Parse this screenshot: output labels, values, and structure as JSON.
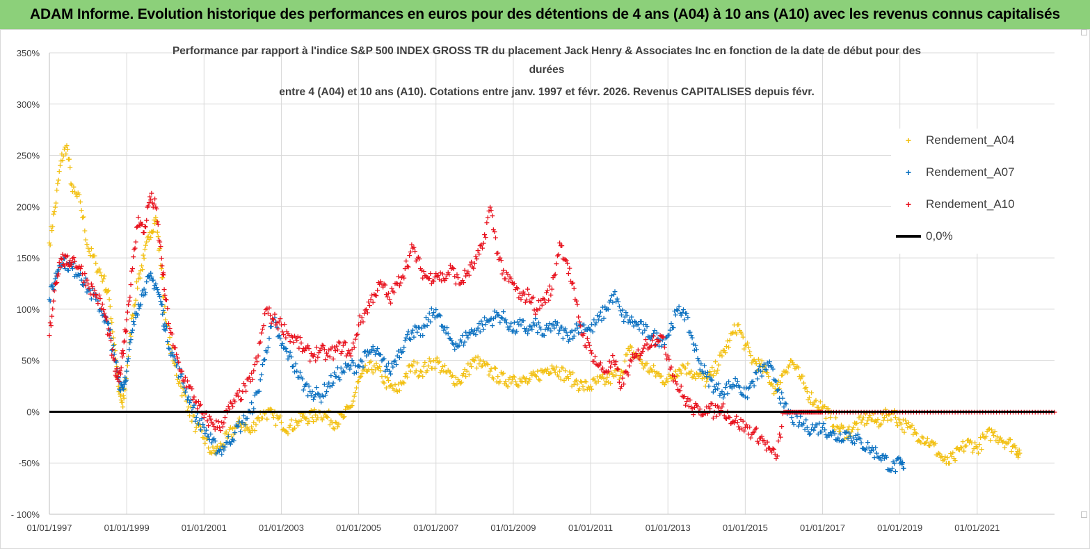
{
  "banner": {
    "title": "ADAM Informe. Evolution historique des performances en euros pour des détentions de 4 ans (A04) à 10 ans (A10) avec les revenus connus capitalisés"
  },
  "colors": {
    "banner_bg": "#8cd07a",
    "a04": "#f2c012",
    "a07": "#0a70c0",
    "a10": "#e8101c",
    "zero": "#000000",
    "grid": "#d9d9d9"
  },
  "chart_data": {
    "type": "scatter",
    "title_lines": [
      "Performance par rapport à l'indice S&P 500 INDEX GROSS TR  du placement Jack Henry & Associates Inc en fonction de la date de début pour des",
      "durées",
      "entre 4 (A04) et 10 ans (A10). Cotations entre janv. 1997 et févr. 2026. Revenus CAPITALISES depuis févr."
    ],
    "xlabel": "",
    "ylabel": "",
    "x_range": [
      1997.0,
      2023.0
    ],
    "ylim": [
      -100,
      350
    ],
    "y_ticks": [
      -100,
      -50,
      0,
      50,
      100,
      150,
      200,
      250,
      300,
      350
    ],
    "y_tick_labels": [
      "- 100%",
      "-50%",
      "0%",
      "50%",
      "100%",
      "150%",
      "200%",
      "250%",
      "300%",
      "350%"
    ],
    "x_ticks": [
      1997,
      1999,
      2001,
      2003,
      2005,
      2007,
      2009,
      2011,
      2013,
      2015,
      2017,
      2019,
      2021
    ],
    "x_tick_labels": [
      "01/01/1997",
      "01/01/1999",
      "01/01/2001",
      "01/01/2003",
      "01/01/2005",
      "01/01/2007",
      "01/01/2009",
      "01/01/2011",
      "01/01/2013",
      "01/01/2015",
      "01/01/2017",
      "01/01/2019",
      "01/01/2021"
    ],
    "legend_position": "top-right",
    "series": [
      {
        "name": "Rendement_A04",
        "marker": "+",
        "x": [
          1997.0,
          1997.15,
          1997.3,
          1997.45,
          1997.6,
          1997.8,
          1998.0,
          1998.2,
          1998.4,
          1998.55,
          1998.7,
          1998.8,
          1998.9,
          1999.0,
          1999.15,
          1999.3,
          1999.45,
          1999.6,
          1999.75,
          1999.9,
          2000.0,
          2000.2,
          2000.4,
          2000.6,
          2000.8,
          2001.0,
          2001.2,
          2001.4,
          2001.6,
          2001.8,
          2002.0,
          2002.2,
          2002.4,
          2002.6,
          2002.8,
          2003.0,
          2003.2,
          2003.4,
          2003.6,
          2003.8,
          2004.0,
          2004.2,
          2004.4,
          2004.6,
          2004.8,
          2005.0,
          2005.2,
          2005.4,
          2005.6,
          2005.8,
          2006.0,
          2006.2,
          2006.4,
          2006.6,
          2006.8,
          2007.0,
          2007.2,
          2007.4,
          2007.6,
          2007.8,
          2008.0,
          2008.2,
          2008.4,
          2008.6,
          2008.8,
          2009.0,
          2009.2,
          2009.4,
          2009.6,
          2009.8,
          2010.0,
          2010.2,
          2010.4,
          2010.6,
          2010.8,
          2011.0,
          2011.2,
          2011.4,
          2011.6,
          2011.8,
          2012.0,
          2012.2,
          2012.4,
          2012.6,
          2012.8,
          2013.0,
          2013.2,
          2013.4,
          2013.6,
          2013.8,
          2014.0,
          2014.2,
          2014.4,
          2014.6,
          2014.8,
          2015.0,
          2015.2,
          2015.4,
          2015.6,
          2015.8,
          2016.0,
          2016.2,
          2016.4,
          2016.6,
          2016.8,
          2017.0,
          2017.2,
          2017.4,
          2017.6,
          2017.8,
          2018.0,
          2018.2,
          2018.4,
          2018.6,
          2018.8,
          2019.0,
          2019.2,
          2019.4,
          2019.6,
          2019.8,
          2020.0,
          2020.2,
          2020.4,
          2020.6,
          2020.8,
          2021.0,
          2021.2,
          2021.4,
          2021.6,
          2021.8,
          2022.0,
          2022.1
        ],
        "values": [
          165,
          200,
          245,
          260,
          215,
          205,
          160,
          145,
          130,
          110,
          60,
          20,
          5,
          40,
          95,
          130,
          150,
          175,
          190,
          140,
          90,
          50,
          25,
          5,
          -15,
          -25,
          -40,
          -35,
          -25,
          -15,
          -10,
          -20,
          -5,
          0,
          -5,
          -10,
          -15,
          -10,
          -5,
          -5,
          0,
          -5,
          -10,
          -5,
          5,
          30,
          40,
          45,
          35,
          25,
          20,
          35,
          45,
          40,
          45,
          50,
          40,
          35,
          30,
          40,
          50,
          45,
          40,
          35,
          30,
          35,
          30,
          30,
          35,
          40,
          45,
          40,
          35,
          30,
          25,
          25,
          30,
          30,
          35,
          40,
          60,
          55,
          45,
          40,
          35,
          30,
          40,
          45,
          40,
          35,
          30,
          40,
          55,
          70,
          85,
          65,
          50,
          45,
          35,
          20,
          40,
          50,
          35,
          20,
          10,
          5,
          -5,
          -15,
          -20,
          -15,
          -10,
          -5,
          -10,
          -5,
          0,
          -10,
          -15,
          -20,
          -25,
          -30,
          -40,
          -50,
          -45,
          -35,
          -30,
          -35,
          -25,
          -20,
          -25,
          -30,
          -35,
          -40
        ]
      },
      {
        "name": "Rendement_A07",
        "marker": "+",
        "x": [
          1997.0,
          1997.15,
          1997.3,
          1997.45,
          1997.6,
          1997.8,
          1998.0,
          1998.2,
          1998.4,
          1998.55,
          1998.7,
          1998.8,
          1998.9,
          1999.0,
          1999.15,
          1999.3,
          1999.45,
          1999.6,
          1999.75,
          1999.9,
          2000.0,
          2000.2,
          2000.4,
          2000.6,
          2000.8,
          2001.0,
          2001.2,
          2001.4,
          2001.6,
          2001.8,
          2002.0,
          2002.2,
          2002.4,
          2002.6,
          2002.8,
          2003.0,
          2003.2,
          2003.4,
          2003.6,
          2003.8,
          2004.0,
          2004.2,
          2004.4,
          2004.6,
          2004.8,
          2005.0,
          2005.2,
          2005.4,
          2005.6,
          2005.8,
          2006.0,
          2006.2,
          2006.4,
          2006.6,
          2006.8,
          2007.0,
          2007.2,
          2007.4,
          2007.6,
          2007.8,
          2008.0,
          2008.2,
          2008.4,
          2008.6,
          2008.8,
          2009.0,
          2009.2,
          2009.4,
          2009.6,
          2009.8,
          2010.0,
          2010.2,
          2010.4,
          2010.6,
          2010.8,
          2011.0,
          2011.2,
          2011.4,
          2011.6,
          2011.8,
          2012.0,
          2012.2,
          2012.4,
          2012.6,
          2012.8,
          2013.0,
          2013.2,
          2013.4,
          2013.6,
          2013.8,
          2014.0,
          2014.2,
          2014.4,
          2014.6,
          2014.8,
          2015.0,
          2015.2,
          2015.4,
          2015.6,
          2015.8,
          2016.0,
          2016.2,
          2016.4,
          2016.6,
          2016.8,
          2017.0,
          2017.2,
          2017.4,
          2017.6,
          2017.8,
          2018.0,
          2018.2,
          2018.4,
          2018.6,
          2018.8,
          2019.0,
          2019.1
        ],
        "values": [
          110,
          130,
          150,
          145,
          140,
          135,
          120,
          110,
          95,
          80,
          50,
          30,
          25,
          40,
          80,
          105,
          120,
          130,
          125,
          105,
          80,
          55,
          35,
          15,
          -5,
          -15,
          -30,
          -38,
          -30,
          -20,
          -10,
          0,
          20,
          60,
          90,
          65,
          55,
          40,
          25,
          20,
          15,
          25,
          35,
          40,
          45,
          45,
          55,
          60,
          50,
          40,
          55,
          70,
          80,
          75,
          90,
          100,
          80,
          70,
          65,
          75,
          80,
          85,
          90,
          95,
          90,
          80,
          85,
          80,
          85,
          75,
          85,
          80,
          75,
          80,
          85,
          80,
          90,
          100,
          115,
          95,
          90,
          85,
          80,
          75,
          70,
          75,
          95,
          100,
          75,
          50,
          35,
          25,
          20,
          25,
          30,
          15,
          30,
          40,
          45,
          30,
          5,
          -5,
          -10,
          -15,
          -15,
          -15,
          -20,
          -25,
          -20,
          -25,
          -30,
          -35,
          -40,
          -45,
          -55,
          -50,
          -55
        ]
      },
      {
        "name": "Rendement_A10",
        "marker": "+",
        "x": [
          1997.0,
          1997.15,
          1997.3,
          1997.45,
          1997.6,
          1997.8,
          1998.0,
          1998.2,
          1998.4,
          1998.55,
          1998.7,
          1998.8,
          1998.9,
          1999.0,
          1999.15,
          1999.3,
          1999.45,
          1999.6,
          1999.75,
          1999.9,
          2000.0,
          2000.2,
          2000.4,
          2000.6,
          2000.8,
          2001.0,
          2001.2,
          2001.4,
          2001.6,
          2001.8,
          2002.0,
          2002.2,
          2002.4,
          2002.6,
          2002.8,
          2003.0,
          2003.2,
          2003.4,
          2003.6,
          2003.8,
          2004.0,
          2004.2,
          2004.4,
          2004.6,
          2004.8,
          2005.0,
          2005.2,
          2005.4,
          2005.6,
          2005.8,
          2006.0,
          2006.2,
          2006.4,
          2006.6,
          2006.8,
          2007.0,
          2007.2,
          2007.4,
          2007.6,
          2007.8,
          2008.0,
          2008.2,
          2008.4,
          2008.6,
          2008.8,
          2009.0,
          2009.2,
          2009.4,
          2009.6,
          2009.8,
          2010.0,
          2010.2,
          2010.4,
          2010.6,
          2010.8,
          2011.0,
          2011.2,
          2011.4,
          2011.6,
          2011.8,
          2012.0,
          2012.2,
          2012.4,
          2012.6,
          2012.8,
          2013.0,
          2013.2,
          2013.4,
          2013.6,
          2013.8,
          2014.0,
          2014.2,
          2014.4,
          2014.6,
          2014.8,
          2015.0,
          2015.2,
          2015.4,
          2015.6,
          2015.8,
          2016.0,
          2016.2,
          2016.4,
          2016.6,
          2016.8,
          2017.0,
          2017.5,
          2018.0,
          2018.5,
          2019.0,
          2019.5,
          2020.0,
          2020.5,
          2021.0,
          2021.5,
          2022.0,
          2022.5,
          2023.0
        ],
        "values": [
          75,
          125,
          150,
          145,
          150,
          140,
          125,
          115,
          100,
          75,
          40,
          30,
          60,
          90,
          140,
          190,
          175,
          210,
          200,
          150,
          110,
          65,
          40,
          25,
          10,
          -5,
          -10,
          -15,
          0,
          10,
          20,
          30,
          55,
          100,
          90,
          85,
          75,
          70,
          60,
          55,
          60,
          55,
          60,
          65,
          55,
          85,
          100,
          115,
          125,
          110,
          125,
          140,
          160,
          140,
          130,
          135,
          130,
          140,
          125,
          135,
          145,
          160,
          200,
          155,
          130,
          125,
          110,
          115,
          100,
          110,
          120,
          165,
          145,
          110,
          75,
          60,
          45,
          40,
          50,
          25,
          45,
          55,
          65,
          70,
          75,
          55,
          30,
          15,
          5,
          0,
          5,
          0,
          5,
          -5,
          -10,
          -15,
          -20,
          -25,
          -35,
          -45,
          0,
          0,
          0,
          0,
          0,
          0,
          0,
          0,
          0,
          0,
          0,
          0,
          0,
          0,
          0,
          0,
          0,
          0
        ]
      },
      {
        "name": "0,0%",
        "marker": "line",
        "x": [
          1997.0,
          2023.0
        ],
        "values": [
          0,
          0
        ]
      }
    ]
  }
}
